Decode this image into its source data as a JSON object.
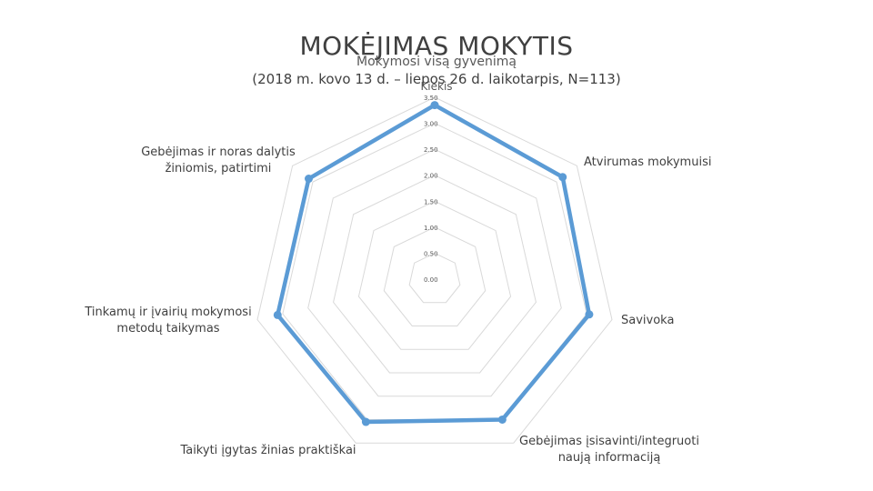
{
  "header": {
    "title": "MOKĖJIMAS MOKYTIS",
    "subtitle": "(2018 m. kovo 13 d. – liepos 26 d. laikotarpis, N=113)"
  },
  "chart_data": {
    "type": "radar",
    "title": "Mokymosi visą gyvenimą",
    "categories": [
      "Kiekis",
      "Atvirumas mokymuisi",
      "Savivoka",
      "Gebėjimas įsisavinti/integruoti naują informaciją",
      "Taikyti įgytas žinias praktiškai",
      "Tinkamų ir įvairių mokymosi metodų taikymas",
      "Gebėjimas ir noras dalytis žiniomis, patirtimi"
    ],
    "axis_labels": [
      "",
      "Atvirumas mokymuisi",
      "Savivoka",
      "Gebėjimas įsisavinti/integruoti\nnaują informaciją",
      "Taikyti įgytas žinias praktiškai",
      "Tinkamų ir įvairių mokymosi\nmetodų taikymas",
      "Gebėjimas ir noras dalytis\nžiniomis, patirtimi"
    ],
    "series": [
      {
        "name": "Kiekis",
        "values": [
          3.35,
          3.15,
          3.05,
          3.0,
          3.05,
          3.1,
          3.1
        ]
      }
    ],
    "ticks": [
      "0.00",
      "0.50",
      "1.00",
      "1.50",
      "2.00",
      "2.50",
      "3.00",
      "3.50"
    ],
    "rlim": [
      0,
      3.5
    ],
    "color": "#5b9bd5",
    "grid_color": "#d9d9d9"
  }
}
